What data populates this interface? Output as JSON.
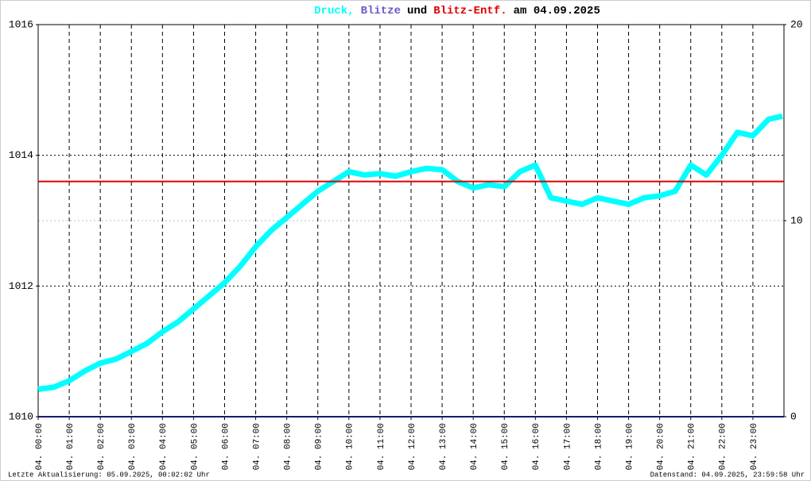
{
  "chart_data": {
    "type": "line",
    "title_parts": [
      {
        "text": "Druck,",
        "color": "#00ffff"
      },
      {
        "text": "Blitze",
        "color": "#6a5acd"
      },
      {
        "text": "und",
        "color": "#000000"
      },
      {
        "text": "Blitz-Entf.",
        "color": "#dd0000"
      },
      {
        "text": "am 04.09.2025",
        "color": "#000000"
      }
    ],
    "footer_left": "Letzte Aktualisierung: 05.09.2025, 00:02:02 Uhr",
    "footer_right": "Datenstand: 04.09.2025, 23:59:58 Uhr",
    "xlim": [
      0,
      24
    ],
    "xticks": [
      {
        "value": 0,
        "label": "04. 00:00"
      },
      {
        "value": 1,
        "label": "04. 01:00"
      },
      {
        "value": 2,
        "label": "04. 02:00"
      },
      {
        "value": 3,
        "label": "04. 03:00"
      },
      {
        "value": 4,
        "label": "04. 04:00"
      },
      {
        "value": 5,
        "label": "04. 05:00"
      },
      {
        "value": 6,
        "label": "04. 06:00"
      },
      {
        "value": 7,
        "label": "04. 07:00"
      },
      {
        "value": 8,
        "label": "04. 08:00"
      },
      {
        "value": 9,
        "label": "04. 09:00"
      },
      {
        "value": 10,
        "label": "04. 10:00"
      },
      {
        "value": 11,
        "label": "04. 11:00"
      },
      {
        "value": 12,
        "label": "04. 12:00"
      },
      {
        "value": 13,
        "label": "04. 13:00"
      },
      {
        "value": 14,
        "label": "04. 14:00"
      },
      {
        "value": 15,
        "label": "04. 15:00"
      },
      {
        "value": 16,
        "label": "04. 16:00"
      },
      {
        "value": 17,
        "label": "04. 17:00"
      },
      {
        "value": 18,
        "label": "04. 18:00"
      },
      {
        "value": 19,
        "label": "04. 19:00"
      },
      {
        "value": 20,
        "label": "04. 20:00"
      },
      {
        "value": 21,
        "label": "04. 21:00"
      },
      {
        "value": 22,
        "label": "04. 22:00"
      },
      {
        "value": 23,
        "label": "04. 23:00"
      }
    ],
    "ylim": [
      1010,
      1016
    ],
    "yticks": [
      1010,
      1012,
      1014,
      1016
    ],
    "y2lim": [
      0,
      20
    ],
    "y2ticks": [
      0,
      10,
      20
    ],
    "grid": true,
    "series": [
      {
        "name": "Druck",
        "color": "#00ffff",
        "axis": "y",
        "x": [
          0,
          0.5,
          1,
          1.5,
          2,
          2.5,
          3,
          3.5,
          4,
          4.5,
          5,
          5.5,
          6,
          6.5,
          7,
          7.5,
          8,
          8.5,
          9,
          9.5,
          10,
          10.5,
          11,
          11.5,
          12,
          12.5,
          13,
          13.5,
          14,
          14.5,
          15,
          15.5,
          16,
          16.5,
          17,
          17.5,
          18,
          18.5,
          19,
          19.5,
          20,
          20.5,
          21,
          21.5,
          22,
          22.5,
          23,
          23.5,
          23.95
        ],
        "values": [
          1010.42,
          1010.45,
          1010.55,
          1010.7,
          1010.82,
          1010.88,
          1011.0,
          1011.12,
          1011.3,
          1011.45,
          1011.65,
          1011.85,
          1012.05,
          1012.3,
          1012.6,
          1012.85,
          1013.05,
          1013.25,
          1013.45,
          1013.6,
          1013.75,
          1013.7,
          1013.72,
          1013.68,
          1013.75,
          1013.8,
          1013.78,
          1013.6,
          1013.5,
          1013.55,
          1013.52,
          1013.75,
          1013.85,
          1013.35,
          1013.3,
          1013.25,
          1013.35,
          1013.3,
          1013.25,
          1013.35,
          1013.38,
          1013.45,
          1013.85,
          1013.7,
          1014.0,
          1014.35,
          1014.3,
          1014.55,
          1014.6
        ]
      },
      {
        "name": "Blitze",
        "color": "#191970",
        "axis": "y2",
        "x": [
          0,
          24
        ],
        "values": [
          0,
          0
        ]
      },
      {
        "name": "Blitz-Entf.",
        "color": "#dd0000",
        "axis": "y2",
        "x": [
          0,
          24
        ],
        "values": [
          12,
          12
        ]
      }
    ]
  }
}
